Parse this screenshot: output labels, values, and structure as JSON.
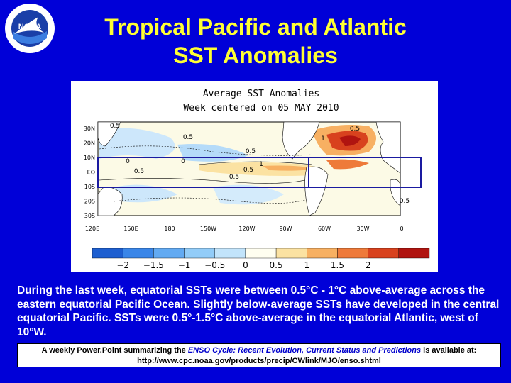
{
  "slide": {
    "title_line1": "Tropical Pacific and Atlantic",
    "title_line2": "SST Anomalies",
    "body": "During the last week, equatorial SSTs were between 0.5°C - 1°C above-average across the eastern equatorial Pacific Ocean. Slightly below-average SSTs have developed in the central equatorial Pacific.  SSTs were 0.5°-1.5°C above-average in the equatorial Atlantic, west of 10°W.",
    "footer_prefix": "A weekly Power.Point summarizing the ",
    "footer_italic": "ENSO Cycle: Recent Evolution, Current Status and Predictions",
    "footer_suffix": " is available at:",
    "footer_url": "http://www.cpc.noaa.gov/products/precip/CWlink/MJO/enso.shtml"
  },
  "logo": {
    "text": "NOAA"
  },
  "map": {
    "title_line1": "Average SST Anomalies",
    "title_line2": "Week centered on 05 MAY 2010",
    "lat_labels": [
      "30N",
      "20N",
      "10N",
      "EQ",
      "10S",
      "20S",
      "30S"
    ],
    "lon_labels": [
      "120E",
      "150E",
      "180",
      "150W",
      "120W",
      "90W",
      "60W",
      "30W",
      "0"
    ],
    "contour_labels": [
      "0.5",
      "0.5",
      "0.5",
      "1",
      "0",
      "0.5",
      "0",
      "0.5",
      "0.5",
      "1",
      "0.5",
      "0.5"
    ],
    "colorbar": {
      "colors": [
        "#1e5fd0",
        "#3a86e8",
        "#62aaf2",
        "#92ccf8",
        "#c2e4fb",
        "#fffef0",
        "#fbe2a2",
        "#f7b062",
        "#ee7a3a",
        "#d8421e",
        "#b01410"
      ],
      "labels": [
        "−2",
        "−1.5",
        "−1",
        "−0.5",
        "0",
        "0.5",
        "1",
        "1.5",
        "2"
      ]
    }
  }
}
